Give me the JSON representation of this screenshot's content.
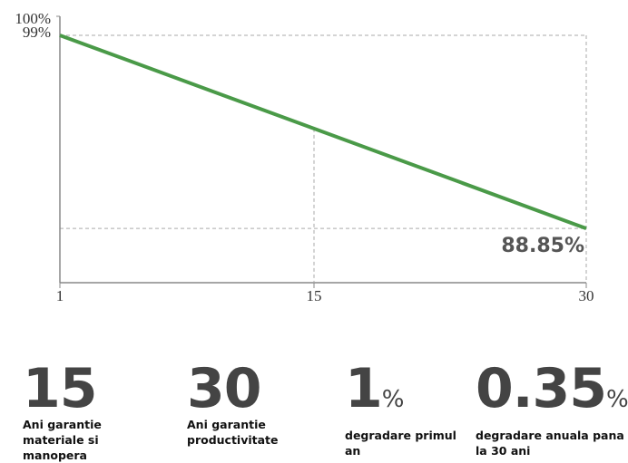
{
  "chart_data": {
    "type": "line",
    "x": [
      1,
      30
    ],
    "series": [
      {
        "name": null,
        "color": "#4a9a48",
        "values": [
          99,
          88.85
        ],
        "value_labels": [
          "99%",
          "88.85%"
        ]
      }
    ],
    "xlim": [
      1,
      30
    ],
    "xticks": [
      1,
      15,
      30
    ],
    "ylim": [
      86,
      100
    ],
    "yticks": [
      {
        "value": 100,
        "label": "100%"
      }
    ]
  },
  "stats": [
    {
      "value": "15",
      "label": "Ani garantie materiale si manopera"
    },
    {
      "value": "30",
      "label": "Ani garantie productivitate"
    },
    {
      "value": "1",
      "unit": "%",
      "label": "degradare primul an"
    },
    {
      "value": "0.35",
      "unit": "%",
      "label": "degradare anuala pana la 30 ani"
    }
  ]
}
